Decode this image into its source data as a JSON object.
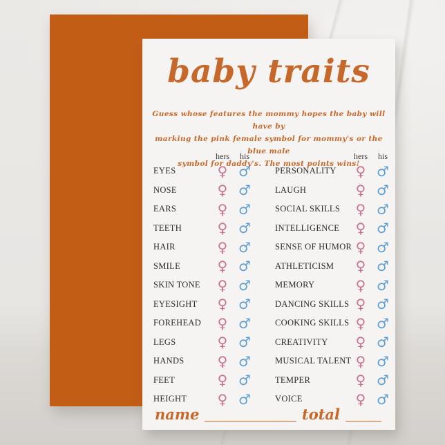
{
  "card": {
    "title": "baby traits",
    "instructions_lines": [
      "Guess whose features the mommy hopes the baby will have by",
      "marking the pink female symbol for mommy's or the blue male",
      "symbol for daddy's. The most points wins!"
    ],
    "column_headers": {
      "hers": "hers",
      "his": "his"
    },
    "left_traits": [
      "EYES",
      "NOSE",
      "EARS",
      "TEETH",
      "HAIR",
      "SMILE",
      "SKIN TONE",
      "EYESIGHT",
      "FOREHEAD",
      "LEGS",
      "HANDS",
      "FEET",
      "HEIGHT"
    ],
    "right_traits": [
      "PERSONALITY",
      "LAUGH",
      "SOCIAL SKILLS",
      "INTELLIGENCE",
      "SENSE OF HUMOR",
      "ATHLETICISM",
      "MEMORY",
      "DANCING SKILLS",
      "COOKING SKILLS",
      "CREATIVITY",
      "MUSICAL TALENT",
      "TEMPER",
      "VOICE"
    ],
    "symbols": {
      "female": "♀",
      "male": "♂"
    },
    "footer": {
      "name_label": "name",
      "total_label": "total"
    }
  },
  "colors": {
    "back_card_orange": "#c25d16",
    "card_background": "#f6f4f2",
    "accent_orange": "#c7682b",
    "female_pink": "#c9718f",
    "male_blue": "#5f9fd6",
    "trait_text": "#2e2a27",
    "surface_marble": "#e8e6e3"
  }
}
